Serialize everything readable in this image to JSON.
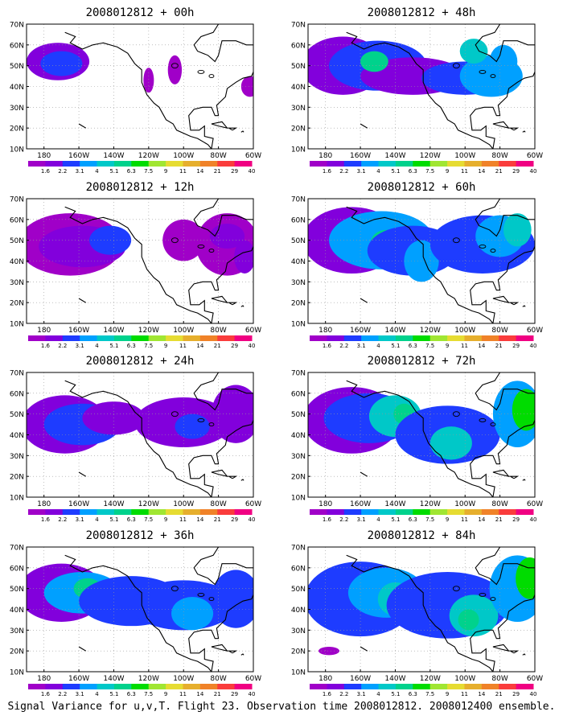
{
  "figure": {
    "caption": "Signal Variance for u,v,T. Flight 23. Observation time 2008012812. 2008012400 ensemble."
  },
  "map": {
    "lat_labels": [
      "70N",
      "60N",
      "50N",
      "40N",
      "30N",
      "20N",
      "10N"
    ],
    "lon_labels": [
      "180",
      "160W",
      "140W",
      "120W",
      "100W",
      "80W",
      "60W"
    ]
  },
  "colorbar": {
    "labels": [
      "1.6",
      "2.2",
      "3.1",
      "4",
      "5.1",
      "6.3",
      "7.5",
      "9",
      "11",
      "14",
      "21",
      "29",
      "40"
    ],
    "colors": [
      "#a000c8",
      "#8200dc",
      "#1e3cff",
      "#00a0ff",
      "#00c8c8",
      "#00d28c",
      "#00dc00",
      "#a0e632",
      "#e6dc32",
      "#e6af2d",
      "#f08228",
      "#fa3c3c",
      "#f00082"
    ]
  },
  "colors": {
    "coast": "#000000",
    "grid": "#999999"
  },
  "panels": [
    {
      "title": "2008012812 + 00h"
    },
    {
      "title": "2008012812 + 48h"
    },
    {
      "title": "2008012812 + 12h"
    },
    {
      "title": "2008012812 + 60h"
    },
    {
      "title": "2008012812 + 24h"
    },
    {
      "title": "2008012812 + 72h"
    },
    {
      "title": "2008012812 + 36h"
    },
    {
      "title": "2008012812 + 84h"
    }
  ]
}
